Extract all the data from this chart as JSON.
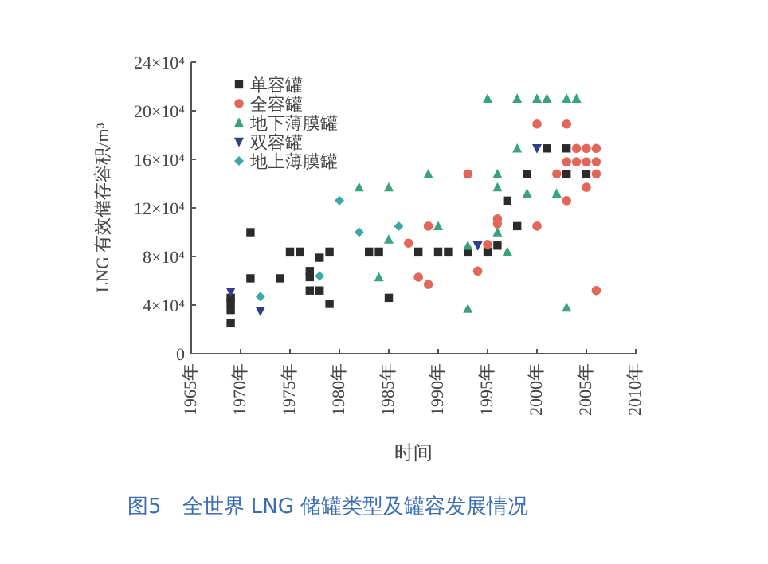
{
  "chart_data": {
    "type": "scatter",
    "title": "图5　全世界 LNG 储罐类型及罐容发展情况",
    "xlabel": "时间",
    "ylabel": "LNG 有效储存容积/m³",
    "xlim": [
      1965,
      2010
    ],
    "xticks": [
      {
        "value": 1965,
        "label": "1965年"
      },
      {
        "value": 1970,
        "label": "1970年"
      },
      {
        "value": 1975,
        "label": "1975年"
      },
      {
        "value": 1980,
        "label": "1980年"
      },
      {
        "value": 1985,
        "label": "1985年"
      },
      {
        "value": 1990,
        "label": "1990年"
      },
      {
        "value": 1995,
        "label": "1995年"
      },
      {
        "value": 2000,
        "label": "2000年"
      },
      {
        "value": 2005,
        "label": "2005年"
      },
      {
        "value": 2010,
        "label": "2010年"
      }
    ],
    "ylim": [
      0,
      240000
    ],
    "yticks": [
      {
        "value": 0,
        "label": "0"
      },
      {
        "value": 40000,
        "label": "4×10⁴"
      },
      {
        "value": 80000,
        "label": "8×10⁴"
      },
      {
        "value": 120000,
        "label": "12×10⁴"
      },
      {
        "value": 160000,
        "label": "16×10⁴"
      },
      {
        "value": 200000,
        "label": "20×10⁴"
      },
      {
        "value": 240000,
        "label": "24×10⁴"
      }
    ],
    "legend": "top left",
    "grid": false,
    "series": [
      {
        "name": "单容罐",
        "color": "#2b2b2b",
        "marker": "square",
        "x": [
          1969,
          1969,
          1969,
          1969,
          1971,
          1971,
          1974,
          1975,
          1976,
          1977,
          1977,
          1977,
          1978,
          1978,
          1979,
          1979,
          1983,
          1984,
          1985,
          1988,
          1990,
          1991,
          1993,
          1995,
          1996,
          1997,
          1998,
          1999,
          2001,
          2003,
          2003,
          2005
        ],
        "values": [
          25000,
          36000,
          42000,
          46000,
          100000,
          62000,
          62000,
          84000,
          84000,
          63000,
          68000,
          52000,
          52000,
          79000,
          41000,
          84000,
          84000,
          84000,
          46000,
          84000,
          84000,
          84000,
          84000,
          84000,
          89000,
          126000,
          105000,
          148000,
          169000,
          148000,
          169000,
          148000
        ]
      },
      {
        "name": "全容罐",
        "color": "#e0675a",
        "marker": "circle",
        "x": [
          1987,
          1988,
          1989,
          1989,
          1993,
          1994,
          1995,
          1996,
          1996,
          2000,
          2000,
          2002,
          2003,
          2003,
          2003,
          2004,
          2005,
          2006,
          2004,
          2005,
          2006,
          2006,
          2005,
          2006
        ],
        "values": [
          91000,
          63000,
          57000,
          105000,
          148000,
          68000,
          90000,
          111000,
          107000,
          105000,
          189000,
          148000,
          126000,
          189000,
          158000,
          169000,
          169000,
          169000,
          158000,
          158000,
          158000,
          148000,
          137000,
          52000
        ]
      },
      {
        "name": "地下薄膜罐",
        "color": "#3aa37a",
        "marker": "triangle",
        "x": [
          1982,
          1984,
          1985,
          1985,
          1989,
          1990,
          1993,
          1993,
          1995,
          1996,
          1996,
          1996,
          1997,
          1998,
          1998,
          1999,
          2000,
          2001,
          2002,
          2003,
          2004,
          2003
        ],
        "values": [
          137000,
          63000,
          137000,
          94000,
          148000,
          105000,
          37000,
          89000,
          210000,
          100000,
          137000,
          148000,
          84000,
          210000,
          169000,
          132000,
          210000,
          210000,
          132000,
          210000,
          210000,
          38000
        ]
      },
      {
        "name": "双容罐",
        "color": "#2e3f8a",
        "marker": "triangle-down",
        "x": [
          1969,
          1972,
          1994,
          2000
        ],
        "values": [
          51000,
          35000,
          89000,
          169000
        ]
      },
      {
        "name": "地上薄膜罐",
        "color": "#3aa8a8",
        "marker": "diamond",
        "x": [
          1972,
          1978,
          1980,
          1982,
          1986
        ],
        "values": [
          47000,
          64000,
          126000,
          100000,
          105000
        ]
      }
    ]
  }
}
